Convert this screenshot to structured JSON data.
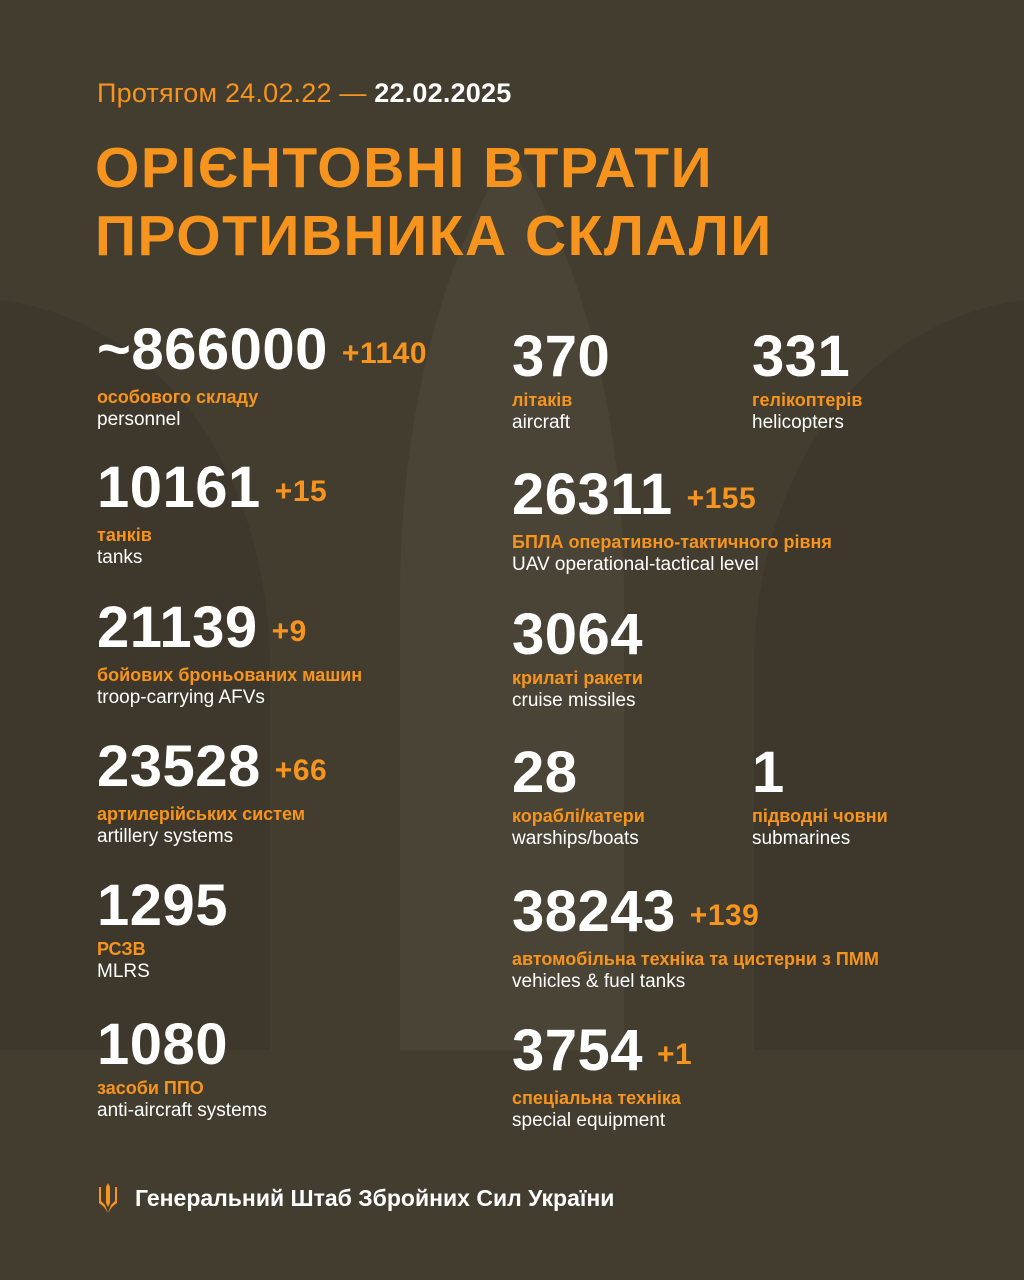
{
  "header": {
    "period_prefix": "Протягом 24.02.22 —",
    "period_end": "22.02.2025",
    "title_line1": "ОРІЄНТОВНІ ВТРАТИ",
    "title_line2": "ПРОТИВНИКА СКЛАЛИ"
  },
  "colors": {
    "background": "#433d30",
    "accent": "#f7941d",
    "text": "#ffffff"
  },
  "stats": {
    "personnel": {
      "number": "~866000",
      "delta": "+1140",
      "ua": "особового складу",
      "en": "personnel"
    },
    "tanks": {
      "number": "10161",
      "delta": "+15",
      "ua": "танків",
      "en": "tanks"
    },
    "afv": {
      "number": "21139",
      "delta": "+9",
      "ua": "бойових броньованих машин",
      "en": "troop-carrying AFVs"
    },
    "artillery": {
      "number": "23528",
      "delta": "+66",
      "ua": "артилерійських систем",
      "en": "artillery systems"
    },
    "mlrs": {
      "number": "1295",
      "ua": "РСЗВ",
      "en": "MLRS"
    },
    "aa": {
      "number": "1080",
      "ua": "засоби ППО",
      "en": "anti-aircraft systems"
    },
    "aircraft": {
      "number": "370",
      "ua": "літаків",
      "en": "aircraft"
    },
    "helicopters": {
      "number": "331",
      "ua": "гелікоптерів",
      "en": "helicopters"
    },
    "uav": {
      "number": "26311",
      "delta": "+155",
      "ua": "БПЛА оперативно-тактичного рівня",
      "en": "UAV operational-tactical level"
    },
    "missiles": {
      "number": "3064",
      "ua": "крилаті ракети",
      "en": "cruise missiles"
    },
    "warships": {
      "number": "28",
      "ua": "кораблі/катери",
      "en": "warships/boats"
    },
    "submarines": {
      "number": "1",
      "ua": "підводні човни",
      "en": "submarines"
    },
    "vehicles": {
      "number": "38243",
      "delta": "+139",
      "ua": "автомобільна техніка та цистерни з ПММ",
      "en": "vehicles & fuel tanks"
    },
    "special": {
      "number": "3754",
      "delta": "+1",
      "ua": "спеціальна техніка",
      "en": "special equipment"
    }
  },
  "footer": {
    "icon": "trident-icon",
    "text": "Генеральний Штаб Збройних Сил України"
  }
}
